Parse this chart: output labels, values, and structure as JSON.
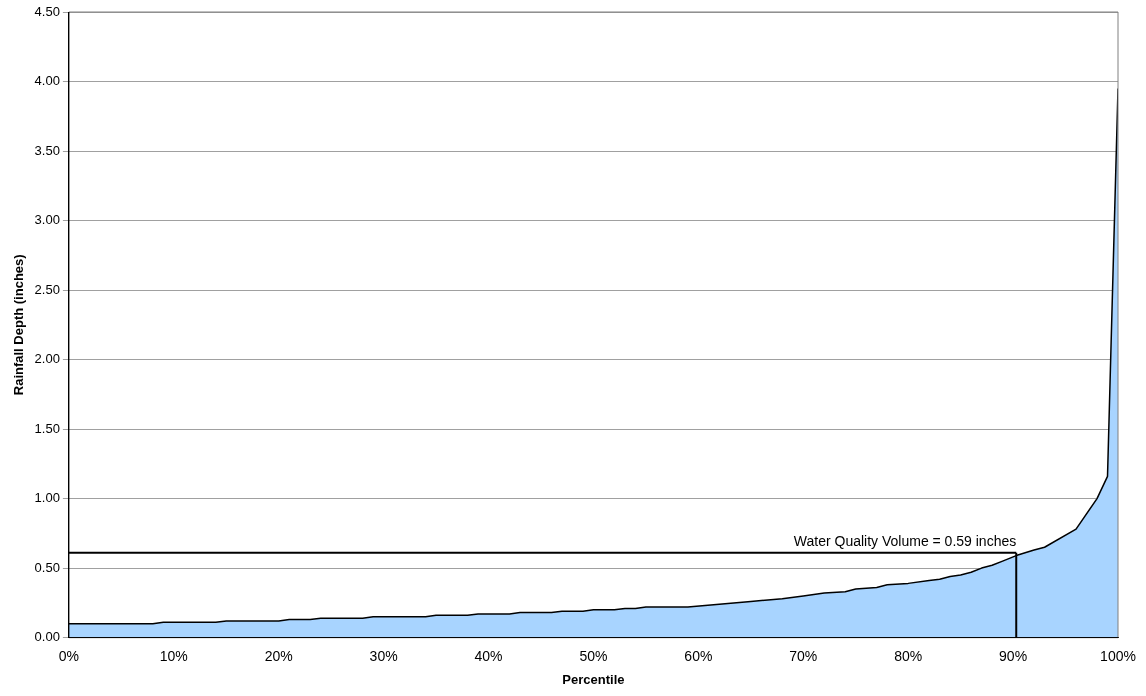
{
  "chart_data": {
    "type": "area",
    "xlabel": "Percentile",
    "ylabel": "Rainfall Depth (inches)",
    "x": [
      0,
      5,
      8,
      9,
      14,
      15,
      20,
      21,
      23,
      24,
      28,
      29,
      34,
      35,
      38,
      39,
      42,
      43,
      46,
      47,
      49,
      50,
      52,
      53,
      54,
      55,
      59,
      62,
      65,
      68,
      70,
      72,
      74,
      75,
      77,
      78,
      80,
      82,
      83,
      84,
      85,
      86,
      87,
      88,
      89,
      90.3,
      92,
      93,
      96,
      98,
      99,
      100
    ],
    "series": [
      {
        "color": "#a8d4ff",
        "values": [
          0.1,
          0.1,
          0.1,
          0.11,
          0.11,
          0.12,
          0.12,
          0.13,
          0.13,
          0.14,
          0.14,
          0.15,
          0.15,
          0.16,
          0.16,
          0.17,
          0.17,
          0.18,
          0.18,
          0.19,
          0.19,
          0.2,
          0.2,
          0.21,
          0.21,
          0.22,
          0.22,
          0.24,
          0.26,
          0.28,
          0.3,
          0.32,
          0.33,
          0.35,
          0.36,
          0.38,
          0.39,
          0.41,
          0.42,
          0.44,
          0.45,
          0.47,
          0.5,
          0.52,
          0.55,
          0.59,
          0.63,
          0.65,
          0.78,
          1.0,
          1.16,
          3.95
        ]
      }
    ],
    "xlim": [
      0,
      100
    ],
    "xticks": [
      {
        "value": 0,
        "label": "0%"
      },
      {
        "value": 10,
        "label": "10%"
      },
      {
        "value": 20,
        "label": "20%"
      },
      {
        "value": 30,
        "label": "30%"
      },
      {
        "value": 40,
        "label": "40%"
      },
      {
        "value": 50,
        "label": "50%"
      },
      {
        "value": 60,
        "label": "60%"
      },
      {
        "value": 70,
        "label": "70%"
      },
      {
        "value": 80,
        "label": "80%"
      },
      {
        "value": 90,
        "label": "90%"
      },
      {
        "value": 100,
        "label": "100%"
      }
    ],
    "ylim": [
      0,
      4.5
    ],
    "yticks": [
      {
        "value": 0,
        "label": "0.00"
      },
      {
        "value": 0.5,
        "label": "0.50"
      },
      {
        "value": 1,
        "label": "1.00"
      },
      {
        "value": 1.5,
        "label": "1.50"
      },
      {
        "value": 2,
        "label": "2.00"
      },
      {
        "value": 2.5,
        "label": "2.50"
      },
      {
        "value": 3,
        "label": "3.00"
      },
      {
        "value": 3.5,
        "label": "3.50"
      },
      {
        "value": 4,
        "label": "4.00"
      },
      {
        "value": 4.5,
        "label": "4.50"
      }
    ],
    "grid": "y",
    "legend": false,
    "ref_lines": [
      {
        "axis": "y",
        "value": 0.61,
        "color": "#000000"
      },
      {
        "axis": "x",
        "value": 90.3,
        "color": "#000000"
      }
    ],
    "annotations": [
      {
        "text": "Water Quality Volume = 0.59 inches",
        "x": 90.3,
        "y": 0.61
      }
    ]
  }
}
